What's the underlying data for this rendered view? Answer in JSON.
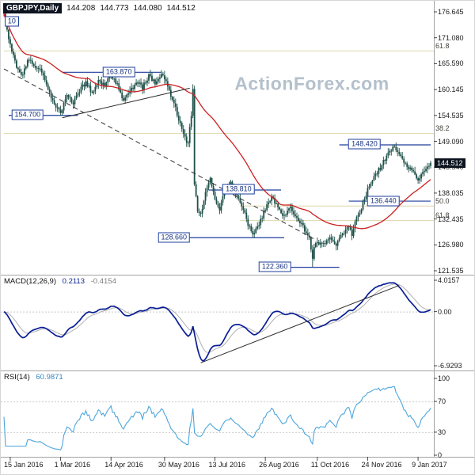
{
  "title": {
    "symbol": "GBPJPY,Daily",
    "open": "144.208",
    "high": "144.773",
    "low": "144.080",
    "close": "144.512"
  },
  "watermark": "ActionForex.com",
  "colors": {
    "candle": "#1d5048",
    "ma": "#cc2020",
    "macd": "#0a1e96",
    "macd_signal": "#b0b0b0",
    "rsi": "#4da6dc",
    "sr": "#1d3d9e",
    "fib_line": "#ddd6ab",
    "current_price_bg": "#0d1420",
    "watermark": "#b4c1cc"
  },
  "chart_data": {
    "type": "candlestick",
    "symbol": "GBPJPY",
    "timeframe": "Daily",
    "title": "GBPJPY,Daily 144.208 144.773 144.080 144.512",
    "days_total": 272,
    "x_ticks": [
      {
        "day": 4,
        "label": "15 Jan 2016"
      },
      {
        "day": 36,
        "label": "1 Mar 2016"
      },
      {
        "day": 68,
        "label": "14 Apr 2016"
      },
      {
        "day": 102,
        "label": "30 May 2016"
      },
      {
        "day": 134,
        "label": "13 Jul 2016"
      },
      {
        "day": 166,
        "label": "26 Aug 2016"
      },
      {
        "day": 199,
        "label": "11 Oct 2016"
      },
      {
        "day": 231,
        "label": "24 Nov 2016"
      },
      {
        "day": 263,
        "label": "9 Jan 2017"
      }
    ],
    "main": {
      "y_ticks": [
        "176.645",
        "171.080",
        "165.590",
        "160.145",
        "154.535",
        "149.090",
        "143.540",
        "138.035",
        "132.435",
        "126.980",
        "121.535"
      ],
      "current_price": "144.512",
      "ma": {
        "type": "SMA",
        "period": 55,
        "color": "#cc2020"
      }
    },
    "price_keyframes": [
      [
        0,
        175.8
      ],
      [
        2,
        172.5
      ],
      [
        4,
        169.5
      ],
      [
        8,
        165.0
      ],
      [
        12,
        163.2
      ],
      [
        16,
        166.8
      ],
      [
        20,
        165.2
      ],
      [
        24,
        164.0
      ],
      [
        28,
        160.0
      ],
      [
        32,
        157.0
      ],
      [
        36,
        155.2
      ],
      [
        40,
        158.5
      ],
      [
        44,
        157.2
      ],
      [
        48,
        160.0
      ],
      [
        52,
        161.5
      ],
      [
        56,
        159.5
      ],
      [
        60,
        162.0
      ],
      [
        64,
        161.0
      ],
      [
        68,
        163.5
      ],
      [
        72,
        161.0
      ],
      [
        76,
        157.6
      ],
      [
        80,
        159.5
      ],
      [
        84,
        162.0
      ],
      [
        88,
        160.5
      ],
      [
        92,
        163.0
      ],
      [
        96,
        161.5
      ],
      [
        100,
        163.2
      ],
      [
        102,
        162.4
      ],
      [
        106,
        159.0
      ],
      [
        110,
        155.0
      ],
      [
        114,
        150.5
      ],
      [
        117,
        148.6
      ],
      [
        119,
        155.0
      ],
      [
        120,
        159.8
      ],
      [
        121,
        139.5
      ],
      [
        123,
        134.6
      ],
      [
        125,
        133.4
      ],
      [
        128,
        138.0
      ],
      [
        131,
        140.8
      ],
      [
        134,
        137.0
      ],
      [
        137,
        134.2
      ],
      [
        140,
        138.8
      ],
      [
        144,
        140.2
      ],
      [
        148,
        137.5
      ],
      [
        152,
        134.5
      ],
      [
        156,
        130.6
      ],
      [
        158,
        129.1
      ],
      [
        162,
        131.5
      ],
      [
        166,
        134.8
      ],
      [
        170,
        137.0
      ],
      [
        174,
        135.5
      ],
      [
        178,
        133.0
      ],
      [
        182,
        135.2
      ],
      [
        186,
        132.6
      ],
      [
        190,
        131.0
      ],
      [
        194,
        128.5
      ],
      [
        196,
        123.6
      ],
      [
        197,
        126.5
      ],
      [
        199,
        127.6
      ],
      [
        203,
        127.0
      ],
      [
        207,
        128.8
      ],
      [
        211,
        127.0
      ],
      [
        215,
        129.2
      ],
      [
        219,
        131.5
      ],
      [
        221,
        129.2
      ],
      [
        223,
        132.0
      ],
      [
        227,
        135.0
      ],
      [
        231,
        139.0
      ],
      [
        235,
        141.2
      ],
      [
        239,
        143.5
      ],
      [
        243,
        146.0
      ],
      [
        247,
        147.9
      ],
      [
        251,
        146.2
      ],
      [
        255,
        144.2
      ],
      [
        259,
        142.6
      ],
      [
        263,
        141.2
      ],
      [
        266,
        142.2
      ],
      [
        269,
        143.8
      ],
      [
        271,
        144.5
      ]
    ],
    "anchors": [
      {
        "d": 0,
        "high": 176.55
      },
      {
        "d": 36,
        "low": 154.7
      },
      {
        "d": 68,
        "high": 163.87
      },
      {
        "d": 125,
        "low": 133.0
      },
      {
        "d": 158,
        "low": 128.66
      },
      {
        "d": 196,
        "low": 122.36
      },
      {
        "d": 247,
        "high": 148.42
      },
      {
        "d": 271,
        "close": 144.512
      }
    ],
    "sr_lines": [
      {
        "label": "163.870",
        "price": 163.87,
        "d1": 37,
        "d2": 100,
        "label_day": 73
      },
      {
        "label": "154.700",
        "price": 154.7,
        "d1": 3,
        "d2": 47,
        "label_day": 15
      },
      {
        "label": "148.420",
        "price": 148.42,
        "d1": 213,
        "d2": 271,
        "label_day": 229
      },
      {
        "label": "138.810",
        "price": 138.81,
        "d1": 130,
        "d2": 176,
        "label_day": 149
      },
      {
        "label": "136.440",
        "price": 136.44,
        "d1": 219,
        "d2": 271,
        "label_day": 241
      },
      {
        "label": "128.660",
        "price": 128.66,
        "d1": 98,
        "d2": 178,
        "label_day": 108
      },
      {
        "label": "122.360",
        "price": 122.36,
        "d1": 163,
        "d2": 213,
        "label_day": 172
      }
    ],
    "trendlines": [
      {
        "d1": 0,
        "p1": 164.5,
        "d2": 198,
        "p2": 128.1,
        "style": "dashed"
      },
      {
        "d1": 37,
        "p1": 154.1,
        "d2": 118,
        "p2": 160.4,
        "style": "solid"
      }
    ],
    "fib_levels": [
      {
        "text": "61.8",
        "price": 168.4,
        "from_day": 0
      },
      {
        "text": "38.2",
        "price": 150.84,
        "from_day": 0
      },
      {
        "text": "50.0",
        "price": 135.39,
        "from_day": 150
      },
      {
        "text": "61.8",
        "price": 132.31,
        "from_day": 150
      }
    ],
    "note": {
      "text": "10",
      "day": 5,
      "price": 174.6
    },
    "macd": {
      "label": "MACD(12,26,9)",
      "value": "0.2113",
      "signal_value": "-0.4154",
      "params": [
        12,
        26,
        9
      ],
      "axis_labels": [
        "4.0157",
        "0.00",
        "-6.9293"
      ],
      "axis_values": [
        4.0157,
        0,
        -6.9293
      ],
      "trendline": {
        "d1": 125,
        "v1": -6.55,
        "d2": 251,
        "v2": 3.35
      }
    },
    "rsi": {
      "label": "RSI(14)",
      "value": "60.9871",
      "period": 14,
      "axis_labels": [
        "100",
        "70",
        "30",
        "0"
      ],
      "axis_values": [
        100,
        70,
        30,
        0
      ],
      "levels": [
        70,
        30
      ]
    }
  }
}
